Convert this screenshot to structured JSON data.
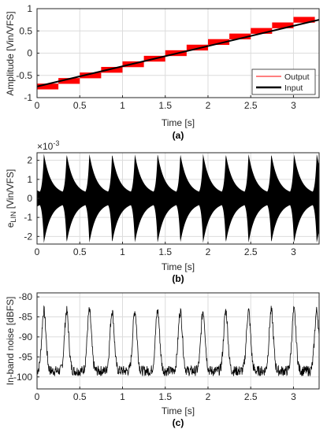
{
  "chart_data": [
    {
      "id": "a",
      "type": "line",
      "caption": "(a)",
      "xlabel": "Time [s]",
      "ylabel": "Amplitude [Vin/VFS]",
      "xlim": [
        0,
        3.3
      ],
      "ylim": [
        -1,
        1
      ],
      "xticks": [
        "0",
        "0.5",
        "1",
        "1.5",
        "2",
        "2.5",
        "3"
      ],
      "yticks": [
        "-1",
        "-0.5",
        "0",
        "0.5",
        "1"
      ],
      "grid": true,
      "legend": {
        "placement": "bottom-right",
        "entries": [
          "Output",
          "Input"
        ]
      },
      "series": [
        {
          "name": "Output",
          "color": "#ff0000",
          "style": "quantized-steps",
          "step_duration_s": 0.25,
          "band_half_height": 0.065,
          "levels": [
            -0.75,
            -0.625,
            -0.5,
            -0.375,
            -0.25,
            -0.125,
            0.0,
            0.125,
            0.25,
            0.375,
            0.5,
            0.625,
            0.75
          ]
        },
        {
          "name": "Input",
          "color": "#000000",
          "style": "ramp",
          "x": [
            0,
            3.3
          ],
          "y": [
            -0.75,
            0.75
          ]
        }
      ]
    },
    {
      "id": "b",
      "type": "area",
      "caption": "(b)",
      "xlabel": "Time [s]",
      "ylabel": "e_LIN [Vin/VFS]",
      "ylabel_main": "e",
      "ylabel_sub": "LIN",
      "ylabel_rest": " [Vin/VFS]",
      "exponent_label": "×10",
      "exponent_power": "-3",
      "xlim": [
        0,
        3.3
      ],
      "ylim": [
        -2.4,
        2.4
      ],
      "xticks": [
        "0",
        "0.5",
        "1",
        "1.5",
        "2",
        "2.5",
        "3"
      ],
      "yticks": [
        "-2",
        "-1",
        "0",
        "1",
        "2"
      ],
      "grid": true,
      "series": [
        {
          "name": "",
          "color": "#000000",
          "description_values": {
            "period_s": 0.266,
            "first_peak_time_s": 0.08,
            "peak": 2.35,
            "trough": -2.35,
            "inner_min": 0.2
          }
        }
      ]
    },
    {
      "id": "c",
      "type": "line",
      "caption": "(c)",
      "xlabel": "Time [s]",
      "ylabel": "In-band noise [dBFS]",
      "xlim": [
        0,
        3.3
      ],
      "ylim": [
        -103,
        -79
      ],
      "xticks": [
        "0",
        "0.5",
        "1",
        "1.5",
        "2",
        "2.5",
        "3"
      ],
      "yticks": [
        "-80",
        "-85",
        "-90",
        "-95",
        "-100"
      ],
      "grid": true,
      "series": [
        {
          "name": "",
          "color": "#000000",
          "period_s": 0.266,
          "first_peak_time_s": 0.08,
          "peak_level": -83.5,
          "floor_level": -98.5,
          "noise_amplitude": 1.3
        }
      ]
    }
  ]
}
